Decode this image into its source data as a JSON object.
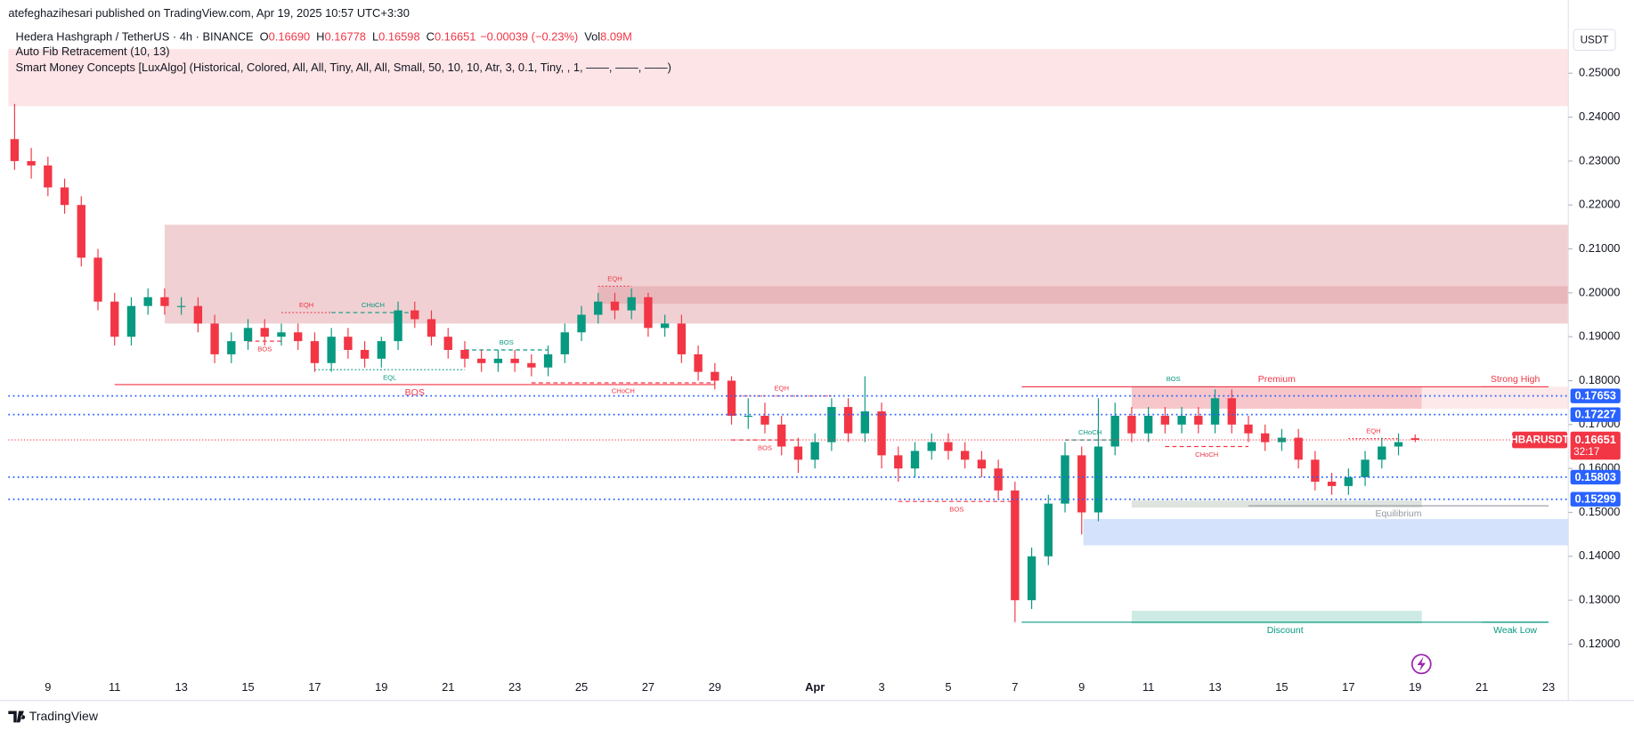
{
  "header": {
    "published": "atefeghazihesari published on TradingView.com, Apr 19, 2025 10:57 UTC+3:30",
    "symbol": "Hedera Hashgraph / TetherUS · 4h · BINANCE",
    "legend_items": [
      {
        "key": "O",
        "value": "0.16690"
      },
      {
        "key": "H",
        "value": "0.16778"
      },
      {
        "key": "L",
        "value": "0.16598"
      },
      {
        "key": "C",
        "value": "0.16651"
      },
      {
        "value": "−0.00039 (−0.23%)"
      },
      {
        "key": "Vol",
        "value": "8.09M"
      }
    ],
    "indicators": [
      "Auto Fib Retracement (10, 13)",
      "Smart Money Concepts [LuxAlgo] (Historical, Colored, All, All, Tiny, All, All, Small, 50, 10, 10, Atr, 3, 0.1, Tiny, , 1, ——, ——, ——)"
    ],
    "currency": "USDT"
  },
  "footer": {
    "brand": "TradingView"
  },
  "chart_data": {
    "type": "candlestick",
    "up_color": "#089981",
    "down_color": "#f23645",
    "grid": false,
    "categories": [
      null,
      null,
      "9",
      null,
      null,
      null,
      "11",
      null,
      null,
      null,
      "13",
      null,
      null,
      null,
      "15",
      null,
      null,
      null,
      "17",
      null,
      null,
      null,
      "19",
      null,
      null,
      null,
      "21",
      null,
      null,
      null,
      "23",
      null,
      null,
      null,
      "25",
      null,
      null,
      null,
      "27",
      null,
      null,
      null,
      "29",
      null,
      null,
      null,
      null,
      null,
      "Apr",
      null,
      null,
      null,
      "3",
      null,
      null,
      null,
      "5",
      null,
      null,
      null,
      "7",
      null,
      null,
      null,
      "9",
      null,
      null,
      null,
      "11",
      null,
      null,
      null,
      "13",
      null,
      null,
      null,
      "15",
      null,
      null,
      null,
      "17",
      null,
      null,
      null,
      "19",
      null,
      null,
      null,
      "21",
      null,
      null,
      null,
      "23"
    ],
    "open": [
      0.235,
      0.23,
      0.229,
      0.224,
      0.22,
      0.208,
      0.198,
      0.19,
      0.197,
      0.199,
      0.197,
      0.197,
      0.193,
      0.186,
      0.189,
      0.192,
      0.19,
      0.191,
      0.189,
      0.184,
      0.19,
      0.187,
      0.185,
      0.189,
      0.196,
      0.194,
      0.19,
      0.187,
      0.185,
      0.184,
      0.185,
      0.184,
      0.183,
      0.186,
      0.191,
      0.195,
      0.198,
      0.196,
      0.199,
      0.192,
      0.193,
      0.186,
      0.182,
      0.18,
      0.172,
      0.172,
      0.17,
      0.165,
      0.162,
      0.166,
      0.174,
      0.168,
      0.173,
      0.163,
      0.16,
      0.164,
      0.166,
      0.164,
      0.162,
      0.16,
      0.155,
      0.13,
      0.14,
      0.152,
      0.163,
      0.15,
      0.165,
      0.172,
      0.168,
      0.172,
      0.17,
      0.172,
      0.17,
      0.176,
      0.17,
      0.168,
      0.166,
      0.167,
      0.162,
      0.157,
      0.156,
      0.158,
      0.162,
      0.165,
      0.1669,
      null,
      null,
      null,
      null,
      null,
      null,
      null,
      null
    ],
    "high": [
      0.243,
      0.233,
      0.231,
      0.226,
      0.222,
      0.21,
      0.2,
      0.199,
      0.201,
      0.201,
      0.199,
      0.199,
      0.195,
      0.191,
      0.194,
      0.194,
      0.193,
      0.193,
      0.191,
      0.192,
      0.192,
      0.189,
      0.19,
      0.198,
      0.198,
      0.196,
      0.192,
      0.189,
      0.187,
      0.187,
      0.187,
      0.186,
      0.188,
      0.193,
      0.197,
      0.2,
      0.2,
      0.201,
      0.2,
      0.195,
      0.195,
      0.188,
      0.184,
      0.181,
      0.176,
      0.175,
      0.172,
      0.167,
      0.168,
      0.176,
      0.176,
      0.181,
      0.175,
      0.165,
      0.166,
      0.168,
      0.168,
      0.166,
      0.164,
      0.162,
      0.157,
      0.142,
      0.154,
      0.166,
      0.165,
      0.176,
      0.175,
      0.174,
      0.174,
      0.174,
      0.174,
      0.174,
      0.178,
      0.178,
      0.172,
      0.17,
      0.169,
      0.169,
      0.164,
      0.159,
      0.16,
      0.164,
      0.167,
      0.168,
      0.16778,
      null,
      null,
      null,
      null,
      null,
      null,
      null,
      null
    ],
    "low": [
      0.228,
      0.226,
      0.222,
      0.218,
      0.206,
      0.196,
      0.188,
      0.188,
      0.195,
      0.195,
      0.195,
      0.191,
      0.184,
      0.184,
      0.187,
      0.188,
      0.188,
      0.187,
      0.182,
      0.182,
      0.185,
      0.183,
      0.183,
      0.187,
      0.192,
      0.188,
      0.185,
      0.183,
      0.182,
      0.182,
      0.182,
      0.181,
      0.181,
      0.184,
      0.189,
      0.193,
      0.194,
      0.194,
      0.19,
      0.19,
      0.184,
      0.18,
      0.178,
      0.17,
      0.169,
      0.168,
      0.163,
      0.159,
      0.16,
      0.164,
      0.166,
      0.166,
      0.16,
      0.157,
      0.158,
      0.162,
      0.162,
      0.16,
      0.158,
      0.153,
      0.125,
      0.128,
      0.138,
      0.15,
      0.145,
      0.148,
      0.163,
      0.166,
      0.166,
      0.168,
      0.168,
      0.168,
      0.168,
      0.168,
      0.166,
      0.164,
      0.164,
      0.16,
      0.155,
      0.154,
      0.154,
      0.156,
      0.16,
      0.163,
      0.16598,
      null,
      null,
      null,
      null,
      null,
      null,
      null,
      null
    ],
    "close": [
      0.23,
      0.229,
      0.224,
      0.22,
      0.208,
      0.198,
      0.19,
      0.197,
      0.199,
      0.197,
      0.197,
      0.193,
      0.186,
      0.189,
      0.192,
      0.19,
      0.191,
      0.189,
      0.184,
      0.19,
      0.187,
      0.185,
      0.189,
      0.196,
      0.194,
      0.19,
      0.187,
      0.185,
      0.184,
      0.185,
      0.184,
      0.183,
      0.186,
      0.191,
      0.195,
      0.198,
      0.196,
      0.199,
      0.192,
      0.193,
      0.186,
      0.182,
      0.18,
      0.172,
      0.172,
      0.17,
      0.165,
      0.162,
      0.166,
      0.174,
      0.168,
      0.173,
      0.163,
      0.16,
      0.164,
      0.166,
      0.164,
      0.162,
      0.16,
      0.155,
      0.13,
      0.14,
      0.152,
      0.163,
      0.15,
      0.165,
      0.172,
      0.168,
      0.172,
      0.17,
      0.172,
      0.17,
      0.176,
      0.17,
      0.168,
      0.166,
      0.167,
      0.162,
      0.157,
      0.156,
      0.158,
      0.162,
      0.165,
      0.166,
      0.16651,
      null,
      null,
      null,
      null,
      null,
      null,
      null,
      null
    ],
    "ylim": [
      0.10717,
      0.26661
    ],
    "yticks": [
      {
        "value": 0.12,
        "label": "0.12000"
      },
      {
        "value": 0.13,
        "label": "0.13000"
      },
      {
        "value": 0.14,
        "label": "0.14000"
      },
      {
        "value": 0.15,
        "label": "0.15000"
      },
      {
        "value": 0.16,
        "label": "0.16000"
      },
      {
        "value": 0.17,
        "label": "0.17000"
      },
      {
        "value": 0.18,
        "label": "0.18000"
      },
      {
        "value": 0.19,
        "label": "0.19000"
      },
      {
        "value": 0.2,
        "label": "0.20000"
      },
      {
        "value": 0.21,
        "label": "0.21000"
      },
      {
        "value": 0.22,
        "label": "0.22000"
      },
      {
        "value": 0.23,
        "label": "0.23000"
      },
      {
        "value": 0.24,
        "label": "0.24000"
      },
      {
        "value": 0.25,
        "label": "0.25000"
      }
    ],
    "zones": [
      {
        "y": [
          0.2555,
          0.2425
        ],
        "x": [
          -0.4,
          93.2
        ],
        "color": "#fde4e6"
      },
      {
        "y": [
          0.2155,
          0.193
        ],
        "x": [
          9,
          93.2
        ],
        "color": "#f0d0d3"
      },
      {
        "y": [
          0.2015,
          0.1975
        ],
        "x": [
          35,
          93.2
        ],
        "color": "#e8b7bb"
      },
      {
        "y": [
          0.1786,
          0.1736
        ],
        "x": [
          67,
          84.4
        ],
        "color": "#f7c6cb"
      },
      {
        "y": [
          0.1786,
          0.1736
        ],
        "x": [
          84.4,
          93.2
        ],
        "color": "#fde8ea"
      },
      {
        "y": [
          0.1485,
          0.1425
        ],
        "x": [
          64.1,
          93.2
        ],
        "color": "#d4e2fb"
      },
      {
        "y": [
          0.1527,
          0.1511
        ],
        "x": [
          67,
          84.4
        ],
        "color": "#dfe4df"
      },
      {
        "y": [
          0.1276,
          0.1247
        ],
        "x": [
          67,
          84.4
        ],
        "color": "#cdebe4"
      }
    ],
    "annotations": [
      {
        "text": "BOS",
        "y": 0.1791,
        "x": [
          6,
          42
        ],
        "color": "#f23645",
        "style": "solid",
        "side": "below"
      },
      {
        "text": "EQH",
        "y": 0.1955,
        "x": [
          16,
          19
        ],
        "color": "#f23645",
        "style": "dotted",
        "side": "above"
      },
      {
        "text": "CHoCH",
        "y": 0.1955,
        "x": [
          19,
          24
        ],
        "color": "#089981",
        "style": "dashed",
        "side": "above"
      },
      {
        "text": "BOS",
        "y": 0.189,
        "x": [
          14,
          16
        ],
        "color": "#f23645",
        "style": "dashed",
        "side": "below"
      },
      {
        "text": "EQL",
        "y": 0.1825,
        "x": [
          18,
          27
        ],
        "color": "#089981",
        "style": "dotted",
        "side": "below"
      },
      {
        "text": "BOS",
        "y": 0.187,
        "x": [
          27,
          32
        ],
        "color": "#089981",
        "style": "dashed",
        "side": "above"
      },
      {
        "text": "EQH",
        "y": 0.2015,
        "x": [
          35,
          37
        ],
        "color": "#f23645",
        "style": "dotted",
        "side": "above"
      },
      {
        "text": "CHoCH",
        "y": 0.1795,
        "x": [
          31,
          42
        ],
        "color": "#f23645",
        "style": "dashed",
        "side": "below"
      },
      {
        "text": "EQH",
        "y": 0.1765,
        "x": [
          43,
          49
        ],
        "color": "#f23645",
        "style": "dotted",
        "side": "above"
      },
      {
        "text": "BOS",
        "y": 0.1665,
        "x": [
          43,
          47
        ],
        "color": "#f23645",
        "style": "dashed",
        "side": "below"
      },
      {
        "text": "BOS",
        "y": 0.1525,
        "x": [
          53,
          60
        ],
        "color": "#f23645",
        "style": "dashed",
        "side": "below"
      },
      {
        "text": "CHoCH",
        "y": 0.1665,
        "x": [
          63,
          66
        ],
        "color": "#089981",
        "style": "dashed",
        "side": "above"
      },
      {
        "text": "BOS",
        "y": 0.1786,
        "x": [
          67,
          72
        ],
        "color": "#089981",
        "style": "solid",
        "side": "above"
      },
      {
        "text": "CHoCH",
        "y": 0.165,
        "x": [
          69,
          74
        ],
        "color": "#f23645",
        "style": "dashed",
        "side": "below"
      },
      {
        "text": "EQH",
        "y": 0.1668,
        "x": [
          80,
          83
        ],
        "color": "#f23645",
        "style": "dotted",
        "side": "above"
      },
      {
        "text": "Premium",
        "y": 0.1786,
        "x": [
          60.4,
          91
        ],
        "color": "#f23645",
        "style": "solid",
        "side": "above"
      },
      {
        "text": "Strong High",
        "y": 0.1786,
        "x": [
          88,
          92
        ],
        "color": "#f23645",
        "style": "solid",
        "side": "above"
      },
      {
        "text": "Equilibrium",
        "y": 0.1515,
        "x": [
          74,
          92
        ],
        "color": "#9598a1",
        "style": "solid",
        "side": "below"
      },
      {
        "text": "Discount",
        "y": 0.125,
        "x": [
          60.4,
          92
        ],
        "color": "#089981",
        "style": "solid",
        "side": "below"
      },
      {
        "text": "Weak Low",
        "y": 0.125,
        "x": [
          88,
          92
        ],
        "color": "#089981",
        "style": "solid",
        "side": "below"
      }
    ],
    "price_lines": [
      {
        "value": 0.17653,
        "label": "0.17653"
      },
      {
        "value": 0.17227,
        "label": "0.17227"
      },
      {
        "value": 0.15803,
        "label": "0.15803"
      },
      {
        "value": 0.15299,
        "label": "0.15299"
      }
    ],
    "price_line_color": "#2962ff",
    "last_price": {
      "value": 0.16651,
      "label": "0.16651",
      "symbol": "HBARUSDT",
      "countdown": "32:17",
      "color": "#f23645"
    }
  }
}
